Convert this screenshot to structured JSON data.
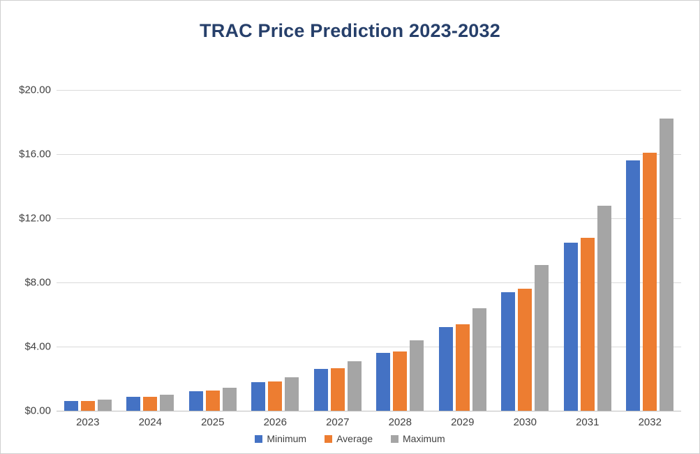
{
  "chart_data": {
    "type": "bar",
    "title": "TRAC Price Prediction 2023-2032",
    "categories": [
      "2023",
      "2024",
      "2025",
      "2026",
      "2027",
      "2028",
      "2029",
      "2030",
      "2031",
      "2032"
    ],
    "series": [
      {
        "name": "Minimum",
        "color": "#4472C4",
        "values": [
          0.6,
          0.85,
          1.2,
          1.8,
          2.6,
          3.6,
          5.2,
          7.4,
          10.5,
          15.6
        ]
      },
      {
        "name": "Average",
        "color": "#ED7D31",
        "values": [
          0.62,
          0.88,
          1.25,
          1.82,
          2.65,
          3.7,
          5.4,
          7.6,
          10.8,
          16.1
        ]
      },
      {
        "name": "Maximum",
        "color": "#A5A5A5",
        "values": [
          0.7,
          1.0,
          1.45,
          2.1,
          3.1,
          4.4,
          6.4,
          9.1,
          12.8,
          18.2
        ]
      }
    ],
    "xlabel": "",
    "ylabel": "",
    "ylim": [
      0,
      20
    ],
    "yticks": [
      {
        "value": 0,
        "label": "$0.00"
      },
      {
        "value": 4,
        "label": "$4.00"
      },
      {
        "value": 8,
        "label": "$8.00"
      },
      {
        "value": 12,
        "label": "$12.00"
      },
      {
        "value": 16,
        "label": "$16.00"
      },
      {
        "value": 20,
        "label": "$20.00"
      }
    ],
    "grid": true,
    "legend_position": "bottom"
  }
}
